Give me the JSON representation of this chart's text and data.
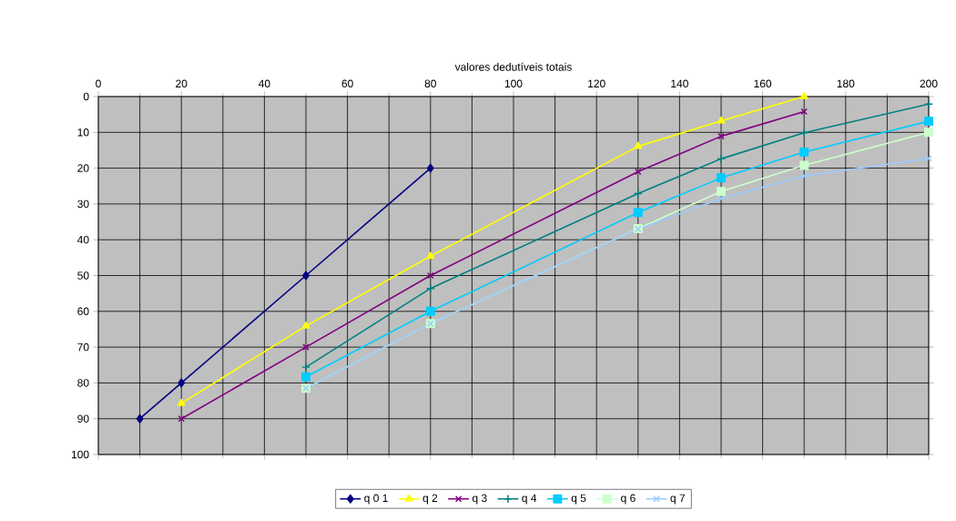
{
  "chart_data": {
    "type": "line",
    "xlabel": "valores dedutíveis totais",
    "xlim": [
      0,
      200
    ],
    "xticks": [
      0,
      20,
      40,
      60,
      80,
      100,
      120,
      140,
      160,
      180,
      200
    ],
    "ylim": [
      100,
      0
    ],
    "yticks": [
      0,
      10,
      20,
      30,
      40,
      50,
      60,
      70,
      80,
      90,
      100
    ],
    "grid": true,
    "legend": "bottom",
    "line_style": "solid",
    "series": [
      {
        "name": "q 0 1",
        "color": "#000080",
        "marker": "diamond",
        "x": [
          10,
          20,
          50,
          80
        ],
        "values": [
          90,
          80,
          50,
          20
        ]
      },
      {
        "name": "q 2",
        "color": "#ffff00",
        "marker": "triangle",
        "x": [
          20,
          50,
          80,
          130,
          150,
          170
        ],
        "values": [
          85.7,
          64.1,
          44.6,
          13.9,
          6.8,
          0
        ]
      },
      {
        "name": "q 3",
        "color": "#800080",
        "marker": "cross",
        "x": [
          20,
          50,
          80,
          130,
          150,
          170
        ],
        "values": [
          90,
          70,
          50,
          21,
          11.1,
          4.2
        ]
      },
      {
        "name": "q 4",
        "color": "#008080",
        "marker": "plus",
        "x": [
          50,
          80,
          130,
          150,
          170,
          200
        ],
        "values": [
          75.6,
          53.6,
          27.1,
          17.4,
          10.1,
          2.1
        ]
      },
      {
        "name": "q 5",
        "color": "#00ccff",
        "marker": "square",
        "x": [
          50,
          80,
          130,
          150,
          170,
          200
        ],
        "values": [
          78.3,
          60,
          32.4,
          22.7,
          15.5,
          6.9
        ]
      },
      {
        "name": "q 6",
        "color": "#ccffcc",
        "marker": "square",
        "x": [
          50,
          80,
          130,
          150,
          170,
          200
        ],
        "values": [
          81.5,
          63.4,
          36.9,
          26.5,
          19.2,
          10
        ]
      },
      {
        "name": "q 7",
        "color": "#99ccff",
        "marker": "cross",
        "x": [
          50,
          80,
          130,
          150,
          170,
          200
        ],
        "values": [
          81.5,
          63.4,
          37,
          28.5,
          22.2,
          17.3
        ]
      }
    ]
  }
}
